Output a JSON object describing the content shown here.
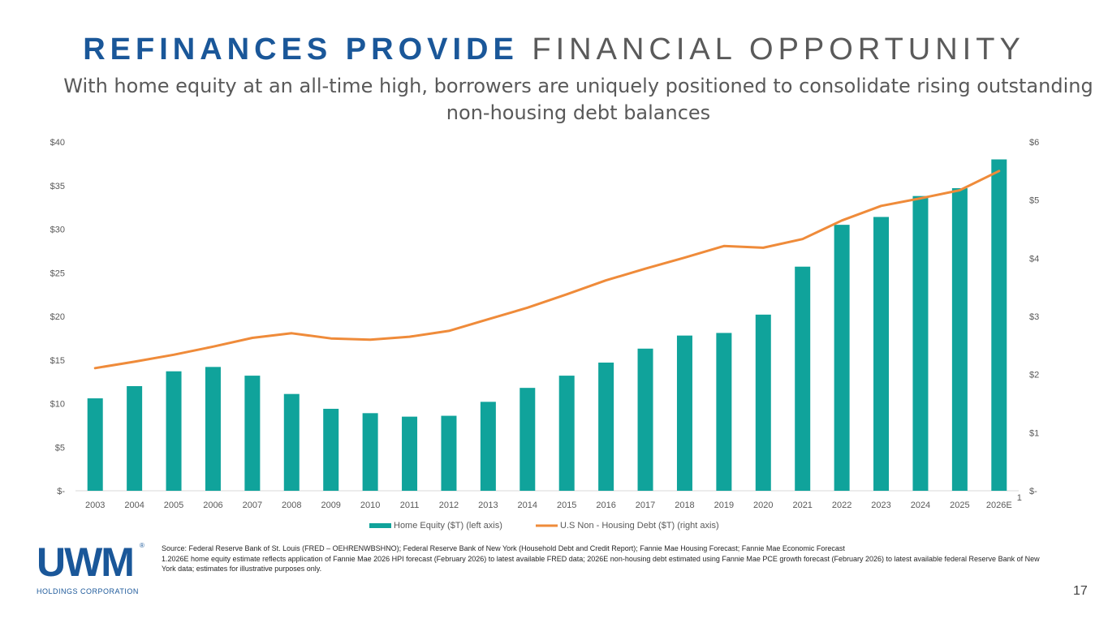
{
  "header": {
    "title_bold": "REFINANCES PROVIDE",
    "title_light": "FINANCIAL OPPORTUNITY",
    "subtitle_line1": "With home equity at an all-time high, borrowers are uniquely positioned to consolidate rising outstanding",
    "subtitle_line2": "non-housing debt balances"
  },
  "chart_data": {
    "type": "bar",
    "title": "",
    "categories": [
      "2003",
      "2004",
      "2005",
      "2006",
      "2007",
      "2008",
      "2009",
      "2010",
      "2011",
      "2012",
      "2013",
      "2014",
      "2015",
      "2016",
      "2017",
      "2018",
      "2019",
      "2020",
      "2021",
      "2022",
      "2023",
      "2024",
      "2025",
      "2026E"
    ],
    "footnote_marker": "1",
    "series": [
      {
        "name": "Home Equity ($T) (left axis)",
        "kind": "bar",
        "axis": "left",
        "color": "#10a39b",
        "values": [
          10.6,
          12.0,
          13.7,
          14.2,
          13.2,
          11.1,
          9.4,
          8.9,
          8.5,
          8.6,
          10.2,
          11.8,
          13.2,
          14.7,
          16.3,
          17.8,
          18.1,
          20.2,
          25.7,
          30.5,
          31.4,
          33.8,
          34.7,
          38.0
        ]
      },
      {
        "name": "U.S Non - Housing Debt ($T) (right axis)",
        "kind": "line",
        "axis": "right",
        "color": "#ef8b3a",
        "values": [
          2.11,
          2.22,
          2.34,
          2.48,
          2.63,
          2.71,
          2.62,
          2.6,
          2.65,
          2.75,
          2.95,
          3.15,
          3.38,
          3.62,
          3.82,
          4.01,
          4.21,
          4.18,
          4.33,
          4.65,
          4.9,
          5.03,
          5.17,
          5.5
        ]
      }
    ],
    "left_axis": {
      "min": 0,
      "max": 40,
      "ticks": [
        "$-",
        "$5",
        "$10",
        "$15",
        "$20",
        "$25",
        "$30",
        "$35",
        "$40"
      ]
    },
    "right_axis": {
      "min": 0,
      "max": 6,
      "ticks": [
        "$-",
        "$1",
        "$2",
        "$3",
        "$4",
        "$5",
        "$6"
      ]
    },
    "legend_position": "bottom",
    "grid": false
  },
  "footer": {
    "logo_text": "UWM",
    "logo_reg": "®",
    "logo_subtext": "HOLDINGS CORPORATION",
    "source_line1": "Source: Federal Reserve Bank of St. Louis (FRED – OEHRENWBSHNO); Federal Reserve Bank of New York (Household Debt and Credit Report); Fannie Mae Housing Forecast; Fannie Mae Economic Forecast",
    "source_line2": "1.2026E home equity estimate reflects application of Fannie Mae 2026 HPI forecast (February 2026) to latest available FRED data; 2026E non-housing debt estimated using Fannie Mae PCE growth forecast (February 2026) to latest available federal Reserve Bank of New York data; estimates for illustrative purposes only.",
    "page_number": "17"
  }
}
